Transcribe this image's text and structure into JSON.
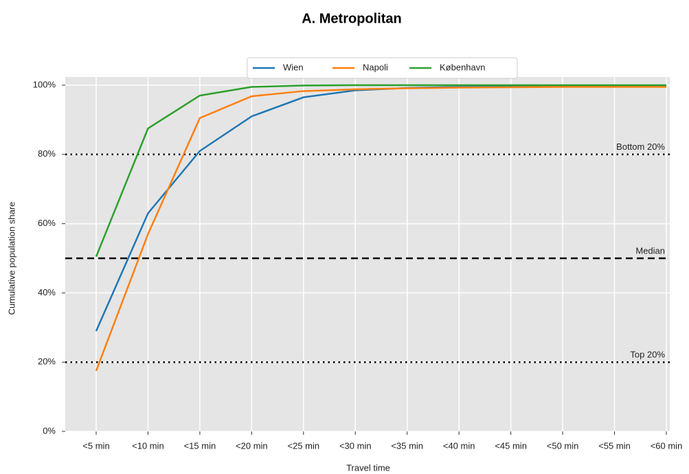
{
  "chart_data": {
    "type": "line",
    "title": "A. Metropolitan",
    "x_label": "Travel time",
    "y_label": "Cumulative population share",
    "categories": [
      "<5 min",
      "<10 min",
      "<15 min",
      "<20 min",
      "<25 min",
      "<30 min",
      "<35 min",
      "<40 min",
      "<45 min",
      "<50 min",
      "<55 min",
      "<60 min"
    ],
    "series": [
      {
        "name": "Wien",
        "color": "#1f77b4",
        "values": [
          29,
          63,
          81,
          91,
          96.5,
          98.5,
          99.2,
          99.5,
          99.6,
          99.7,
          99.8,
          99.8
        ]
      },
      {
        "name": "Napoli",
        "color": "#ff7f0e",
        "values": [
          17.5,
          57,
          90.5,
          96.8,
          98.3,
          98.8,
          99.1,
          99.3,
          99.4,
          99.5,
          99.5,
          99.5
        ]
      },
      {
        "name": "København",
        "color": "#2ca02c",
        "values": [
          50.5,
          87.5,
          97,
          99.5,
          99.9,
          100,
          100,
          100,
          100,
          100,
          100,
          100
        ]
      }
    ],
    "ylim": [
      0,
      100
    ],
    "yticks": [
      {
        "value": 0,
        "label": "0%"
      },
      {
        "value": 20,
        "label": "20%"
      },
      {
        "value": 40,
        "label": "40%"
      },
      {
        "value": 60,
        "label": "60%"
      },
      {
        "value": 80,
        "label": "80%"
      },
      {
        "value": 100,
        "label": "100%"
      }
    ],
    "reference_lines": [
      {
        "value": 80,
        "label": "Bottom 20%",
        "style": "dotted"
      },
      {
        "value": 50,
        "label": "Median",
        "style": "dashed"
      },
      {
        "value": 20,
        "label": "Top 20%",
        "style": "dotted"
      }
    ],
    "grid": true,
    "legend": "top"
  }
}
